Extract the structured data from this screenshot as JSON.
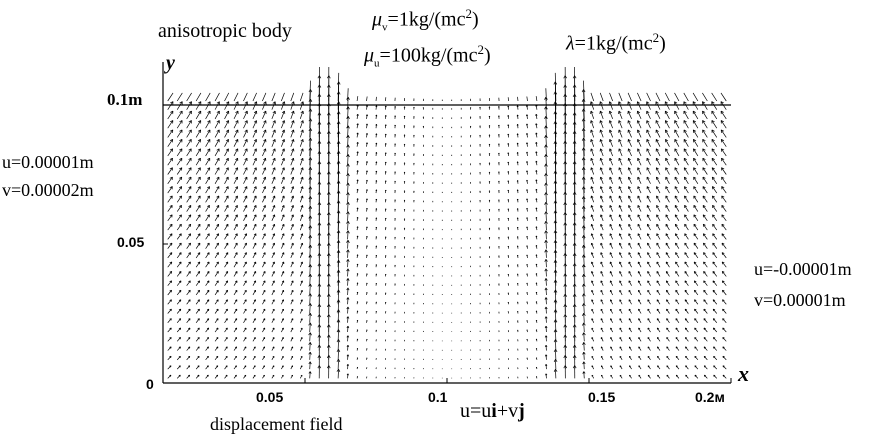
{
  "annotations": {
    "body_label": "anisotropic body",
    "mu_v": "=1kg/(mc",
    "mu_u": "=100kg/(mc",
    "lambda": "=1kg/(mc",
    "power": "2",
    "close_paren": ")",
    "mu_symbol": "μ",
    "mu_v_sub": "v",
    "mu_u_sub": "u",
    "lambda_symbol": "λ",
    "left_bc_u": "u=0.00001m",
    "left_bc_v": "v=0.00002m",
    "right_bc_u": "u=-0.00001m",
    "right_bc_v": "v=0.00001m",
    "field_label": "displacement field",
    "vector_eq_plain_1": "u=u",
    "vector_eq_bold_i": "i",
    "vector_eq_plain_2": "+v",
    "vector_eq_bold_j": "j"
  },
  "chart_data": {
    "type": "quiver",
    "x_axis_label": "x",
    "y_axis_label": "y",
    "x_ticks": [
      "0.05",
      "0.1",
      "0.15",
      "0.2м"
    ],
    "x_tick_values": [
      0.05,
      0.1,
      0.15,
      0.2
    ],
    "y_ticks": [
      "0",
      "0.05",
      "0.1m"
    ],
    "y_tick_values": [
      0,
      0.05,
      0.1
    ],
    "xlim": [
      0,
      0.2
    ],
    "ylim": [
      0,
      0.1
    ],
    "domain_top_line": 0.1,
    "grid_nx": 60,
    "grid_ny": 30,
    "columns_of_strong_upward_vectors_x": [
      0.055,
      0.06,
      0.14,
      0.145
    ],
    "arrow_color": "#000000"
  }
}
